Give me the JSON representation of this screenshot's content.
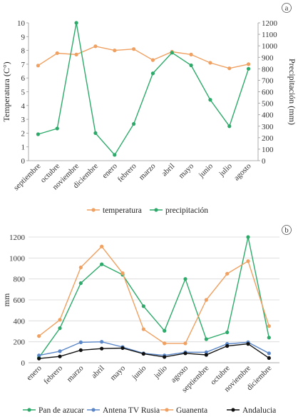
{
  "chart_data": [
    {
      "type": "line",
      "panel_label": "a",
      "categories": [
        "septiembre",
        "octubre",
        "noviembre",
        "diciembre",
        "enero",
        "febrero",
        "marzo",
        "abril",
        "mayo",
        "junio",
        "julio",
        "agosto"
      ],
      "ylabel": "Temperatura (C°)",
      "y2label": "Precipitación (mm)",
      "ylim": [
        0,
        10
      ],
      "y2lim": [
        0,
        1200
      ],
      "yticks": [
        "0",
        "1",
        "2",
        "3",
        "4",
        "5",
        "6",
        "7",
        "8",
        "9",
        "10"
      ],
      "y2ticks": [
        "0",
        "100",
        "200",
        "300",
        "400",
        "500",
        "600",
        "700",
        "800",
        "900",
        "1000",
        "1100",
        "1200"
      ],
      "grid": false,
      "legend": "bottom",
      "series": [
        {
          "name": "temperatura",
          "axis": "left",
          "color": "#f0a060",
          "values": [
            6.9,
            7.8,
            7.7,
            8.3,
            8.0,
            8.1,
            7.3,
            7.9,
            7.7,
            7.1,
            6.7,
            7.0
          ]
        },
        {
          "name": "precipitación",
          "axis": "right",
          "color": "#2daa6a",
          "values": [
            230,
            280,
            1200,
            240,
            50,
            320,
            760,
            940,
            830,
            530,
            300,
            800
          ]
        }
      ]
    },
    {
      "type": "line",
      "panel_label": "b",
      "categories": [
        "enero",
        "febrero",
        "marzo",
        "abril",
        "mayo",
        "junio",
        "julio",
        "agosto",
        "septiembre",
        "octubre",
        "noviembre",
        "diciembre"
      ],
      "ylabel": "mm",
      "ylim": [
        0,
        1200
      ],
      "yticks": [
        "0",
        "200",
        "400",
        "600",
        "800",
        "1000",
        "1200"
      ],
      "grid": true,
      "legend": "bottom",
      "series": [
        {
          "name": "Pan de azucar",
          "color": "#2daa6a",
          "values": [
            50,
            330,
            760,
            940,
            840,
            540,
            305,
            800,
            225,
            290,
            1200,
            240
          ]
        },
        {
          "name": "Antena TV Rusia",
          "color": "#5b87c9",
          "values": [
            70,
            110,
            195,
            200,
            150,
            90,
            70,
            100,
            100,
            180,
            195,
            90
          ]
        },
        {
          "name": "Guanenta",
          "color": "#f0a060",
          "values": [
            255,
            410,
            910,
            1110,
            855,
            320,
            185,
            185,
            600,
            850,
            970,
            350
          ]
        },
        {
          "name": "Andalucia",
          "color": "#111111",
          "values": [
            40,
            60,
            120,
            135,
            140,
            85,
            55,
            90,
            75,
            160,
            180,
            45
          ]
        }
      ]
    }
  ]
}
